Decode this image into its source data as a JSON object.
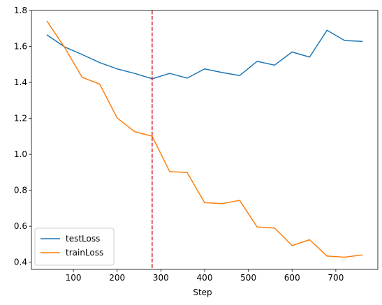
{
  "chart_data": {
    "type": "line",
    "title": "",
    "xlabel": "Step",
    "ylabel": "",
    "xlim": [
      4,
      796
    ],
    "ylim": [
      0.36,
      1.8
    ],
    "xticks": [
      100,
      200,
      300,
      400,
      500,
      600,
      700
    ],
    "yticks": [
      0.4,
      0.6,
      0.8,
      1.0,
      1.2,
      1.4,
      1.6,
      1.8
    ],
    "grid": false,
    "legend_position": "lower-left",
    "x": [
      40,
      80,
      120,
      160,
      200,
      240,
      280,
      320,
      360,
      400,
      440,
      480,
      520,
      560,
      600,
      640,
      680,
      720,
      760
    ],
    "series": [
      {
        "name": "testLoss",
        "color": "#1f77b4",
        "values": [
          1.663,
          1.597,
          1.555,
          1.51,
          1.475,
          1.45,
          1.42,
          1.45,
          1.424,
          1.475,
          1.455,
          1.438,
          1.517,
          1.496,
          1.569,
          1.541,
          1.69,
          1.633,
          1.628
        ]
      },
      {
        "name": "trainLoss",
        "color": "#ff7f0e",
        "values": [
          1.739,
          1.594,
          1.428,
          1.391,
          1.202,
          1.126,
          1.101,
          0.904,
          0.899,
          0.731,
          0.726,
          0.744,
          0.596,
          0.59,
          0.493,
          0.525,
          0.434,
          0.428,
          0.44
        ]
      }
    ],
    "annotations": [
      {
        "type": "vline",
        "x": 280,
        "color": "#d62728",
        "style": "dashed"
      }
    ]
  }
}
